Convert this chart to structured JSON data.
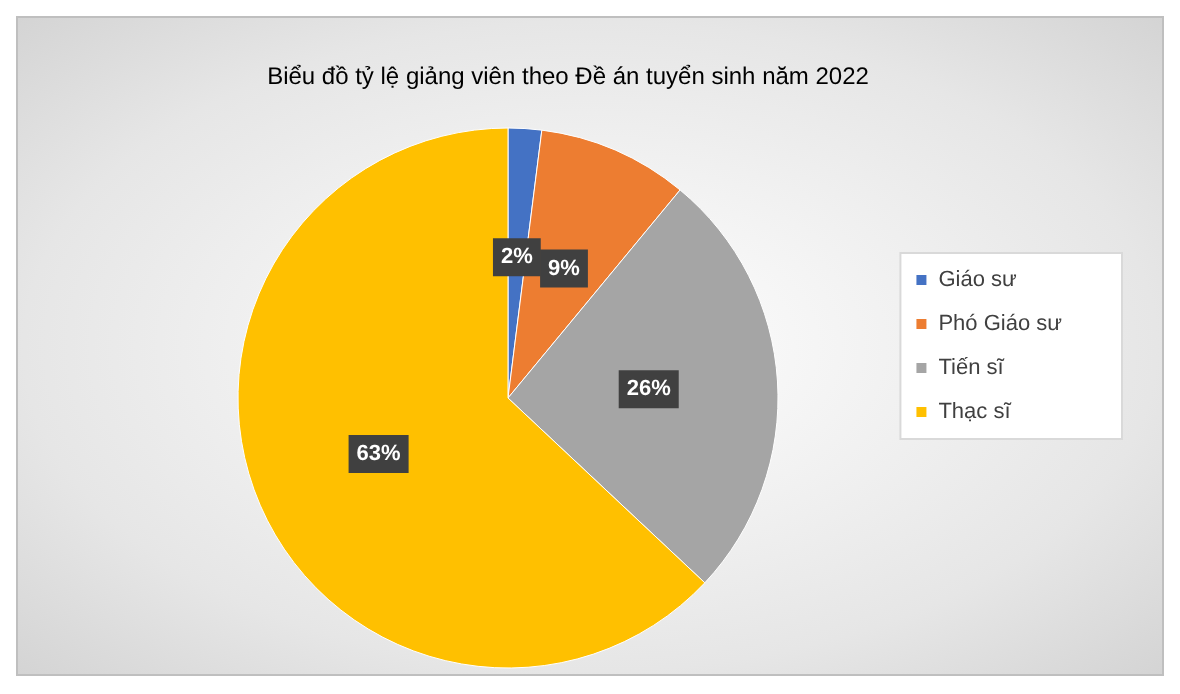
{
  "chart_data": {
    "type": "pie",
    "title": "Biểu đồ tỷ lệ giảng viên theo Đề án tuyển sinh năm 2022",
    "categories": [
      "Giáo sư",
      "Phó Giáo sư",
      "Tiến sĩ",
      "Thạc sĩ"
    ],
    "values": [
      2,
      9,
      26,
      63
    ],
    "value_labels": [
      "2%",
      "9%",
      "26%",
      "63%"
    ],
    "colors": [
      "#4472c4",
      "#ed7d31",
      "#a5a5a5",
      "#ffc000"
    ],
    "legend": "right"
  }
}
